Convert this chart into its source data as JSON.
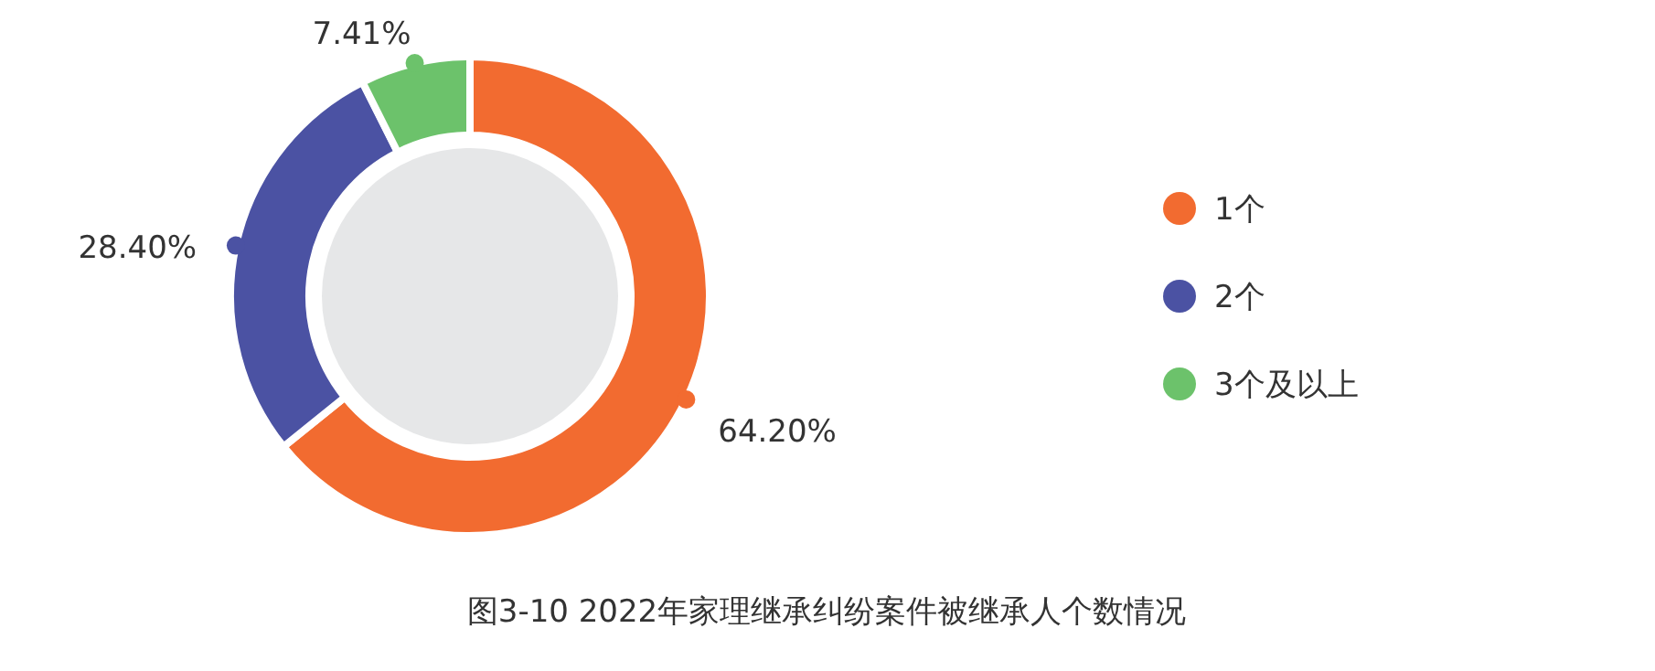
{
  "chart_data": {
    "type": "donut",
    "title": "图3-10  2022年家理继承纠纷案件被继承人个数情况",
    "categories": [
      "1个",
      "2个",
      "3个及以上"
    ],
    "values": [
      64.2,
      28.4,
      7.41
    ],
    "colors": [
      "#f26b30",
      "#4b52a3",
      "#6cc26b"
    ],
    "value_labels": [
      "64.20%",
      "28.40%",
      "7.41%"
    ],
    "legend": "right"
  }
}
